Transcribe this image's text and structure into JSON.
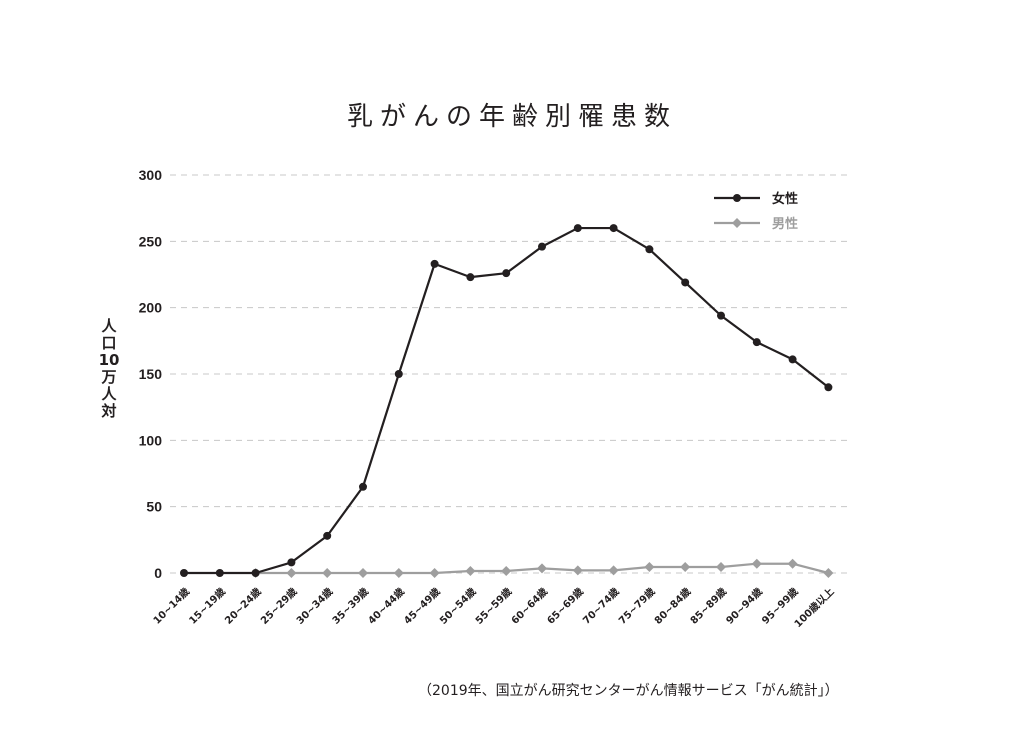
{
  "chart_data": {
    "type": "line",
    "title": "乳がんの年齢別罹患数",
    "xlabel": "",
    "ylabel": "人口10万人対",
    "ylim": [
      0,
      300
    ],
    "yticks": [
      0,
      50,
      100,
      150,
      200,
      250,
      300
    ],
    "grid": true,
    "legend_position": "top-right",
    "categories": [
      "10~14歳",
      "15~19歳",
      "20~24歳",
      "25~29歳",
      "30~34歳",
      "35~39歳",
      "40~44歳",
      "45~49歳",
      "50~54歳",
      "55~59歳",
      "60~64歳",
      "65~69歳",
      "70~74歳",
      "75~79歳",
      "80~84歳",
      "85~89歳",
      "90~94歳",
      "95~99歳",
      "100歳以上"
    ],
    "series": [
      {
        "name": "女性",
        "color": "#231f20",
        "marker": "circle",
        "values": [
          0,
          0,
          0,
          8,
          28,
          65,
          150,
          233,
          223,
          226,
          246,
          260,
          260,
          244,
          219,
          194,
          174,
          161,
          140
        ]
      },
      {
        "name": "男性",
        "color": "#9e9e9e",
        "marker": "diamond",
        "values": [
          null,
          null,
          0,
          0,
          0,
          0,
          0,
          0,
          1.5,
          1.5,
          3.5,
          2,
          2,
          4.5,
          4.5,
          4.5,
          7,
          7,
          0
        ]
      }
    ],
    "source": "（2019年、国立がん研究センターがん情報サービス「がん統計」）"
  }
}
